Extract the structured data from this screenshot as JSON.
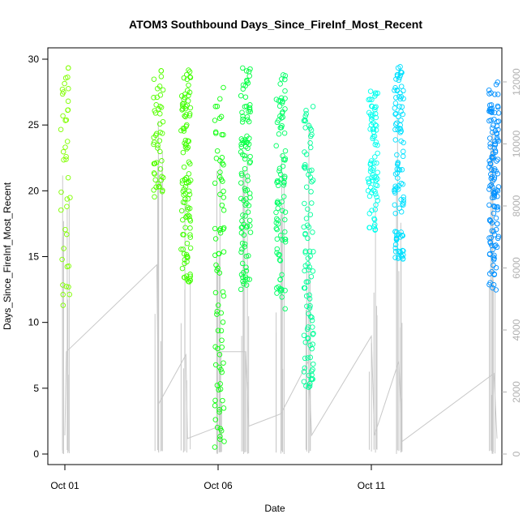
{
  "chart_data": {
    "type": "scatter",
    "title": "ATOM3 Southbound Days_Since_FireInf_Most_Recent",
    "xlabel": "Date",
    "ylabel": "Days_Since_FireInf_Most_Recent",
    "x_ticks": [
      "Oct 01",
      "Oct 06",
      "Oct 11"
    ],
    "x_range_days": [
      1,
      15
    ],
    "ylim": [
      0,
      30
    ],
    "y_ticks": [
      0,
      5,
      10,
      15,
      20,
      25,
      30
    ],
    "ylim_right": [
      0,
      12000
    ],
    "y_ticks_right": [
      0,
      2000,
      4000,
      6000,
      8000,
      10000,
      12000
    ],
    "grid": false,
    "legend": "none",
    "colors": {
      "points": [
        "#80ff00",
        "#40ff00",
        "#00ff40",
        "#00ff80",
        "#00ffff",
        "#00c0ff",
        "#0080ff"
      ],
      "secondary_line": "#c8c8c8",
      "axis": "#000000",
      "right_axis": "#b0b0b0"
    },
    "clusters": [
      {
        "day": 1.02,
        "ymin": 10.5,
        "ymax": 29.5,
        "n": 40,
        "color": "#80ff00"
      },
      {
        "day": 4.05,
        "ymin": 19.5,
        "ymax": 29.3,
        "n": 50,
        "color": "#55ff00"
      },
      {
        "day": 4.95,
        "ymin": 13.0,
        "ymax": 29.2,
        "n": 110,
        "color": "#40ff00"
      },
      {
        "day": 6.05,
        "ymin": 0.2,
        "ymax": 28.8,
        "n": 80,
        "color": "#10ff10"
      },
      {
        "day": 6.9,
        "ymin": 12.5,
        "ymax": 29.8,
        "n": 100,
        "color": "#00ff40"
      },
      {
        "day": 8.05,
        "ymin": 11.0,
        "ymax": 29.5,
        "n": 90,
        "color": "#00ff66"
      },
      {
        "day": 8.95,
        "ymin": 5.0,
        "ymax": 26.5,
        "n": 100,
        "color": "#00ff99"
      },
      {
        "day": 11.05,
        "ymin": 17.0,
        "ymax": 28.5,
        "n": 80,
        "color": "#00ffee"
      },
      {
        "day": 11.9,
        "ymin": 14.8,
        "ymax": 29.5,
        "n": 110,
        "color": "#00e0ff"
      },
      {
        "day": 15.0,
        "ymin": 12.2,
        "ymax": 28.3,
        "n": 130,
        "color": "#0090ff"
      }
    ],
    "secondary_series": {
      "name": "",
      "approx_points": [
        [
          1.0,
          600
        ],
        [
          1.05,
          3300
        ],
        [
          4.0,
          6100
        ],
        [
          4.05,
          1600
        ],
        [
          4.95,
          3200
        ],
        [
          5.0,
          500
        ],
        [
          6.05,
          900
        ],
        [
          6.1,
          3300
        ],
        [
          6.9,
          3300
        ],
        [
          7.0,
          900
        ],
        [
          8.05,
          1300
        ],
        [
          8.95,
          3000
        ],
        [
          9.05,
          600
        ],
        [
          11.0,
          3800
        ],
        [
          11.1,
          600
        ],
        [
          11.9,
          3000
        ],
        [
          12.0,
          400
        ],
        [
          15.0,
          2600
        ],
        [
          15.1,
          500
        ]
      ]
    }
  }
}
